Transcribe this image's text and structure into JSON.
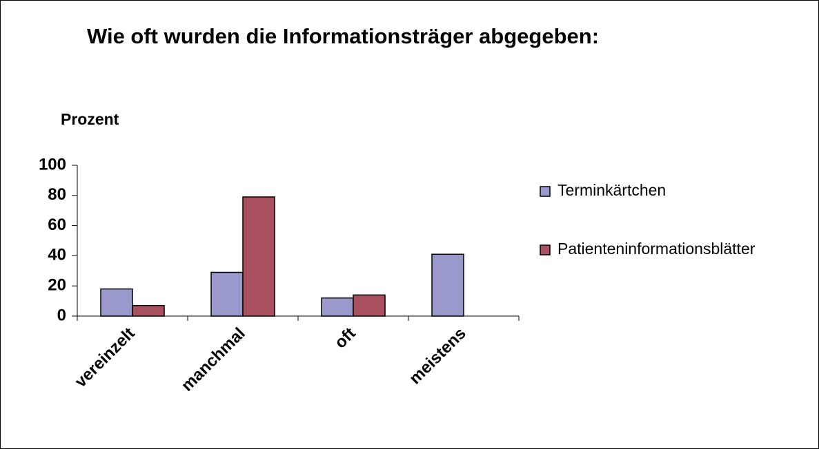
{
  "chart_data": {
    "type": "bar",
    "title": "Wie oft wurden die Informationsträger abgegeben:",
    "y_label": "Prozent",
    "categories": [
      "vereinzelt",
      "manchmal",
      "oft",
      "meistens"
    ],
    "series": [
      {
        "name": "Terminkärtchen",
        "color": "#9999cc",
        "values": [
          18,
          29,
          12,
          41
        ]
      },
      {
        "name": "Patienteninformationsblätter",
        "color": "#a8505f",
        "values": [
          7,
          79,
          14,
          null
        ]
      }
    ],
    "ylim": [
      0,
      100
    ],
    "yticks": [
      0,
      20,
      40,
      60,
      80,
      100
    ],
    "grid": false,
    "legend": "right"
  }
}
